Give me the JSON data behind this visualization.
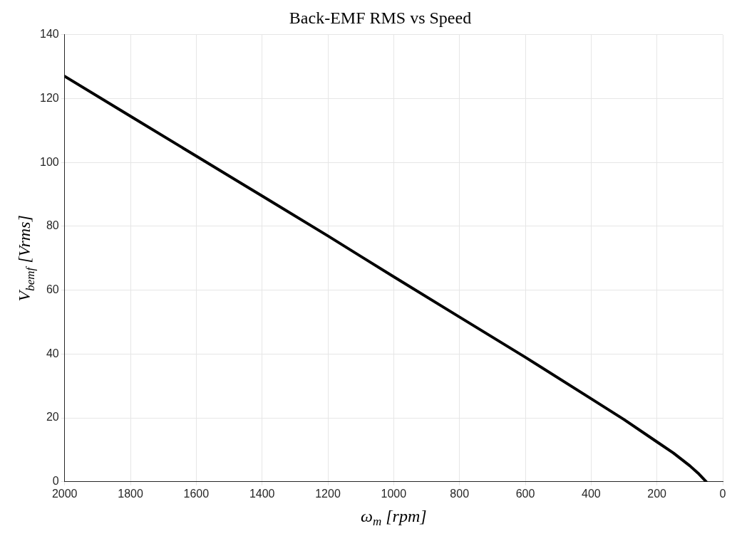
{
  "chart_data": {
    "type": "line",
    "title": "Back-EMF RMS vs Speed",
    "xlabel": "ω$_{m}$ [rpm]",
    "ylabel": "V$_{bemf}$ [Vrms]",
    "series": [
      {
        "color": "#000000",
        "x": [
          2000,
          1800,
          1600,
          1400,
          1200,
          1000,
          800,
          600,
          400,
          300,
          200,
          150,
          100,
          75,
          50
        ],
        "values": [
          127,
          114.5,
          102,
          89.5,
          77,
          64.2,
          51.6,
          39,
          26,
          19.5,
          12.5,
          9,
          5,
          2.7,
          0
        ]
      }
    ],
    "xlim": [
      2000,
      0
    ],
    "xticks": [
      2000,
      1800,
      1600,
      1400,
      1200,
      1000,
      800,
      600,
      400,
      200,
      0
    ],
    "ylim": [
      0,
      140
    ],
    "yticks": [
      0,
      20,
      40,
      60,
      80,
      100,
      120,
      140
    ],
    "grid": true,
    "legend": false,
    "marker": "none",
    "line_style": "solid"
  }
}
